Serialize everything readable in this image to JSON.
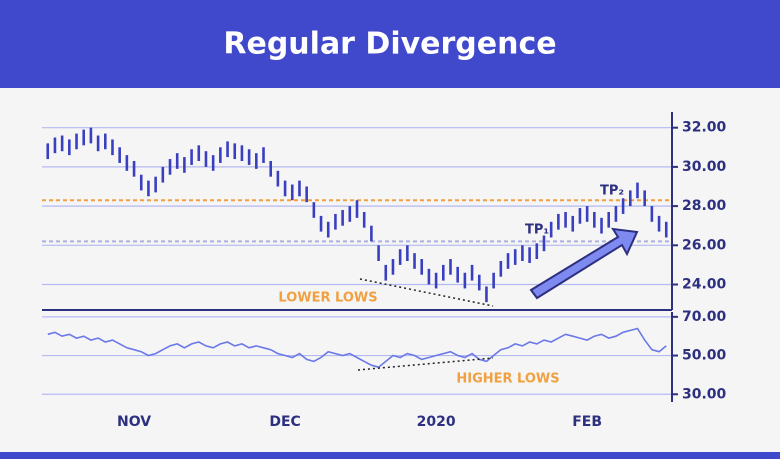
{
  "chart_data": [
    {
      "type": "hl",
      "title": "Regular Divergence",
      "color": "#3a3fc0",
      "high": [
        31.2,
        31.5,
        31.6,
        31.4,
        31.7,
        31.9,
        32.0,
        31.6,
        31.7,
        31.4,
        31.0,
        30.6,
        30.3,
        29.6,
        29.3,
        29.5,
        30.0,
        30.4,
        30.7,
        30.5,
        30.9,
        31.1,
        30.8,
        30.6,
        31.0,
        31.3,
        31.2,
        31.1,
        30.9,
        30.7,
        31.0,
        30.3,
        29.8,
        29.3,
        29.1,
        29.3,
        29.0,
        28.2,
        27.5,
        27.2,
        27.6,
        27.8,
        28.0,
        28.3,
        27.7,
        27.0,
        26.0,
        25.0,
        25.3,
        25.8,
        26.0,
        25.6,
        25.3,
        24.8,
        24.6,
        25.0,
        25.3,
        24.9,
        24.6,
        25.0,
        24.5,
        23.9,
        24.6,
        25.2,
        25.6,
        25.8,
        26.0,
        25.9,
        26.1,
        26.5,
        27.2,
        27.6,
        27.7,
        27.5,
        27.9,
        28.0,
        27.7,
        27.4,
        27.7,
        28.0,
        28.4,
        28.8,
        29.2,
        28.8,
        28.0,
        27.5,
        27.2
      ],
      "low": [
        30.4,
        30.7,
        30.8,
        30.6,
        30.9,
        31.1,
        31.2,
        30.8,
        30.9,
        30.6,
        30.2,
        29.8,
        29.5,
        28.8,
        28.5,
        28.7,
        29.2,
        29.6,
        29.9,
        29.7,
        30.1,
        30.3,
        30.0,
        29.8,
        30.2,
        30.5,
        30.4,
        30.3,
        30.1,
        29.9,
        30.2,
        29.5,
        29.0,
        28.5,
        28.3,
        28.5,
        28.2,
        27.4,
        26.7,
        26.4,
        26.8,
        27.0,
        27.2,
        27.4,
        26.9,
        26.2,
        25.2,
        24.2,
        24.5,
        25.0,
        25.2,
        24.8,
        24.5,
        24.0,
        23.8,
        24.2,
        24.5,
        24.1,
        23.8,
        24.2,
        23.7,
        23.1,
        23.8,
        24.4,
        24.8,
        25.0,
        25.2,
        25.1,
        25.3,
        25.7,
        26.4,
        26.8,
        26.9,
        26.7,
        27.1,
        27.2,
        26.9,
        26.6,
        26.9,
        27.2,
        27.6,
        28.0,
        28.4,
        28.0,
        27.2,
        26.7,
        26.4
      ],
      "xlim": [
        -0.8,
        86.8
      ],
      "ylim": [
        22.7,
        32.8
      ],
      "yticks": [
        {
          "value": 24,
          "label": "24.00"
        },
        {
          "value": 26,
          "label": "26.00"
        },
        {
          "value": 28,
          "label": "28.00"
        },
        {
          "value": 30,
          "label": "30.00"
        },
        {
          "value": 32,
          "label": "32.00"
        }
      ],
      "levels": [
        {
          "value": 28.3,
          "color": "#f0a040"
        },
        {
          "value": 26.2,
          "color": "#aab0e0"
        }
      ],
      "annotations": [
        {
          "text": "LOWER LOWS",
          "color": "#f0a040"
        },
        {
          "text": "TP₁",
          "color": "#2d3080"
        },
        {
          "text": "TP₂",
          "color": "#2d3080"
        }
      ],
      "grid": true
    },
    {
      "type": "line",
      "color": "#6a78e8",
      "values": [
        61,
        62,
        60,
        61,
        59,
        60,
        58,
        59,
        57,
        58,
        56,
        54,
        53,
        52,
        50,
        51,
        53,
        55,
        56,
        54,
        56,
        57,
        55,
        54,
        56,
        57,
        55,
        56,
        54,
        55,
        54,
        53,
        51,
        50,
        49,
        51,
        48,
        47,
        49,
        52,
        51,
        50,
        51,
        49,
        47,
        45,
        44,
        47,
        50,
        49,
        51,
        50,
        48,
        49,
        50,
        51,
        52,
        50,
        49,
        51,
        48,
        47,
        50,
        53,
        54,
        56,
        55,
        57,
        56,
        58,
        57,
        59,
        61,
        60,
        59,
        58,
        60,
        61,
        59,
        60,
        62,
        63,
        64,
        58,
        53,
        52,
        55
      ],
      "xlim": [
        -0.8,
        86.8
      ],
      "ylim": [
        26,
        72.5
      ],
      "yticks": [
        {
          "value": 30,
          "label": "30.00"
        },
        {
          "value": 50,
          "label": "50.00"
        },
        {
          "value": 70,
          "label": "70.00"
        }
      ],
      "xticks": [
        {
          "value": 12,
          "label": "NOV"
        },
        {
          "value": 33,
          "label": "DEC"
        },
        {
          "value": 54,
          "label": "2020"
        },
        {
          "value": 75,
          "label": "FEB"
        }
      ],
      "annotations": [
        {
          "text": "HIGHER LOWS",
          "color": "#f0a040"
        }
      ],
      "grid": true
    }
  ]
}
